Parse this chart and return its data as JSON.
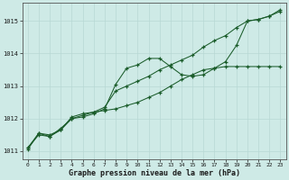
{
  "xlabel": "Graphe pression niveau de la mer (hPa)",
  "background_color": "#ceeae6",
  "grid_color": "#b8d8d4",
  "line_color": "#1a5c2a",
  "xlim": [
    -0.5,
    23.5
  ],
  "ylim": [
    1010.75,
    1015.55
  ],
  "yticks": [
    1011,
    1012,
    1013,
    1014,
    1015
  ],
  "xticks": [
    0,
    1,
    2,
    3,
    4,
    5,
    6,
    7,
    8,
    9,
    10,
    11,
    12,
    13,
    14,
    15,
    16,
    17,
    18,
    19,
    20,
    21,
    22,
    23
  ],
  "line1_x": [
    0,
    1,
    2,
    3,
    4,
    5,
    6,
    7,
    8,
    9,
    10,
    11,
    12,
    13,
    14,
    15,
    16,
    17,
    18,
    19,
    20,
    21,
    22,
    23
  ],
  "line1_y": [
    1011.05,
    1011.55,
    1011.45,
    1011.7,
    1012.0,
    1012.05,
    1012.15,
    1012.3,
    1013.05,
    1013.55,
    1013.65,
    1013.85,
    1013.85,
    1013.6,
    1013.35,
    1013.3,
    1013.35,
    1013.55,
    1013.75,
    1014.25,
    1015.0,
    1015.05,
    1015.15,
    1015.3
  ],
  "line2_x": [
    0,
    1,
    2,
    3,
    4,
    5,
    6,
    7,
    8,
    9,
    10,
    11,
    12,
    13,
    14,
    15,
    16,
    17,
    18,
    19,
    20,
    21,
    22,
    23
  ],
  "line2_y": [
    1011.1,
    1011.5,
    1011.45,
    1011.65,
    1012.0,
    1012.1,
    1012.2,
    1012.25,
    1012.3,
    1012.4,
    1012.5,
    1012.65,
    1012.8,
    1013.0,
    1013.2,
    1013.35,
    1013.5,
    1013.55,
    1013.6,
    1013.6,
    1013.6,
    1013.6,
    1013.6,
    1013.6
  ],
  "line3_x": [
    0,
    1,
    2,
    3,
    4,
    5,
    6,
    7,
    8,
    9,
    10,
    11,
    12,
    13,
    14,
    15,
    16,
    17,
    18,
    19,
    20,
    21,
    22,
    23
  ],
  "line3_y": [
    1011.1,
    1011.55,
    1011.5,
    1011.65,
    1012.05,
    1012.15,
    1012.2,
    1012.35,
    1012.85,
    1013.0,
    1013.15,
    1013.3,
    1013.5,
    1013.65,
    1013.8,
    1013.95,
    1014.2,
    1014.4,
    1014.55,
    1014.8,
    1015.0,
    1015.05,
    1015.15,
    1015.35
  ]
}
